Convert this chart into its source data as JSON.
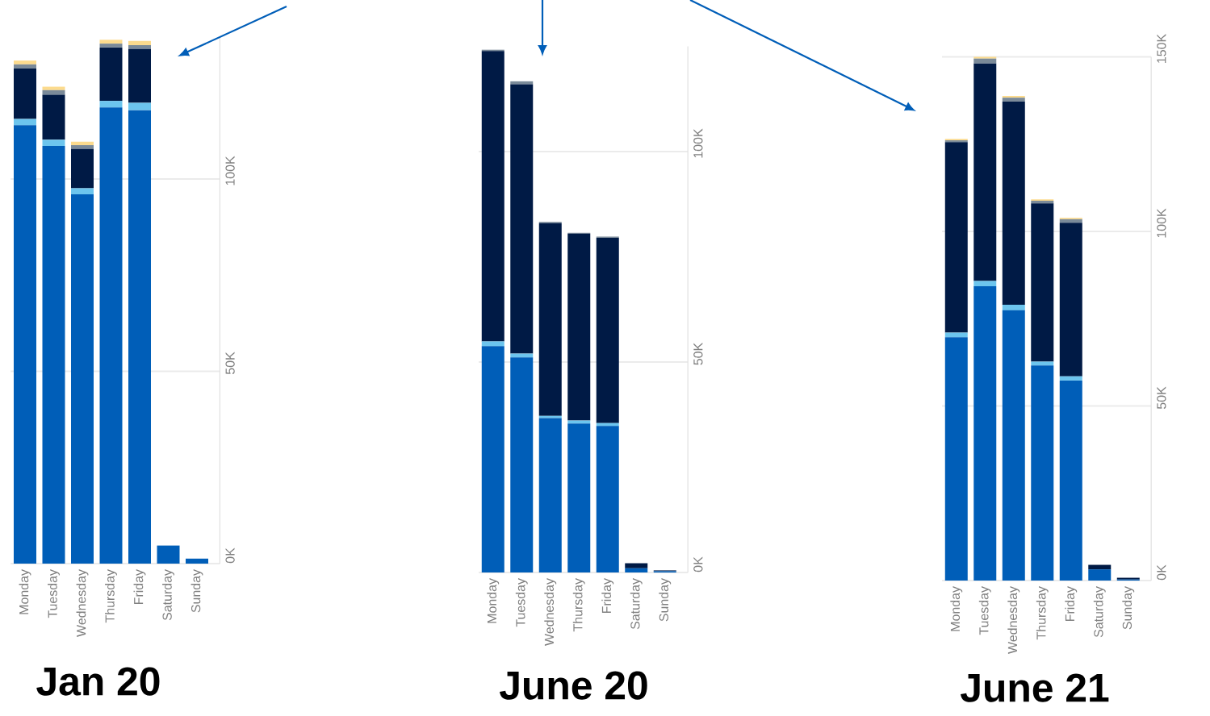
{
  "chart_data": [
    {
      "type": "bar",
      "title": "Jan 20",
      "stacked": true,
      "grid": "y",
      "categories": [
        "Monday",
        "Tuesday",
        "Wednesday",
        "Thursday",
        "Friday",
        "Saturday",
        "Sunday"
      ],
      "ylim": [
        0,
        137000
      ],
      "yticks": [
        {
          "value": 0,
          "label": "0K"
        },
        {
          "value": 50000,
          "label": "50K"
        },
        {
          "value": 100000,
          "label": "100K"
        }
      ],
      "series": [
        {
          "color": "#005eb8",
          "values": [
            114000,
            108600,
            96000,
            118600,
            117900,
            4700,
            1300
          ]
        },
        {
          "color": "#6cc5ee",
          "values": [
            1600,
            1600,
            1600,
            1700,
            1900,
            null,
            null
          ]
        },
        {
          "color": "#001a45",
          "values": [
            13100,
            11700,
            10200,
            13900,
            14000,
            null,
            null
          ]
        },
        {
          "color": "#7a8a99",
          "values": [
            1100,
            1200,
            1000,
            1000,
            1000,
            null,
            null
          ]
        },
        {
          "color": "#fcdb8e",
          "values": [
            1000,
            900,
            900,
            1000,
            1100,
            null,
            null
          ]
        }
      ]
    },
    {
      "type": "bar",
      "title": "June 20",
      "stacked": true,
      "grid": "y",
      "categories": [
        "Monday",
        "Tuesday",
        "Wednesday",
        "Thursday",
        "Friday",
        "Saturday",
        "Sunday"
      ],
      "ylim": [
        0,
        125000
      ],
      "yticks": [
        {
          "value": 0,
          "label": "0K"
        },
        {
          "value": 50000,
          "label": "50K"
        },
        {
          "value": 100000,
          "label": "100K"
        }
      ],
      "series": [
        {
          "color": "#005eb8",
          "values": [
            53800,
            51100,
            36700,
            35400,
            34800,
            1000,
            300
          ]
        },
        {
          "color": "#6cc5ee",
          "values": [
            1100,
            900,
            500,
            700,
            700,
            null,
            null
          ]
        },
        {
          "color": "#001a45",
          "values": [
            69000,
            64000,
            45800,
            44400,
            44000,
            1200,
            200
          ]
        },
        {
          "color": "#7a8a99",
          "values": [
            300,
            700,
            300,
            200,
            300,
            null,
            null
          ]
        }
      ]
    },
    {
      "type": "bar",
      "title": "June 21",
      "stacked": true,
      "grid": "y",
      "categories": [
        "Monday",
        "Tuesday",
        "Wednesday",
        "Thursday",
        "Friday",
        "Saturday",
        "Sunday"
      ],
      "ylim": [
        0,
        150000
      ],
      "yticks": [
        {
          "value": 0,
          "label": "0K"
        },
        {
          "value": 50000,
          "label": "50K"
        },
        {
          "value": 100000,
          "label": "100K"
        },
        {
          "value": 150000,
          "label": "150K"
        }
      ],
      "series": [
        {
          "color": "#005eb8",
          "values": [
            69700,
            84300,
            77400,
            61600,
            57300,
            3200,
            300
          ]
        },
        {
          "color": "#6cc5ee",
          "values": [
            1300,
            1500,
            1600,
            1100,
            1200,
            null,
            null
          ]
        },
        {
          "color": "#001a45",
          "values": [
            54600,
            62300,
            58200,
            45300,
            44000,
            1300,
            500
          ]
        },
        {
          "color": "#7a8a99",
          "values": [
            500,
            1400,
            1100,
            800,
            1000,
            null,
            null
          ]
        },
        {
          "color": "#fcdb8e",
          "values": [
            400,
            600,
            500,
            400,
            400,
            null,
            null
          ]
        }
      ]
    }
  ]
}
